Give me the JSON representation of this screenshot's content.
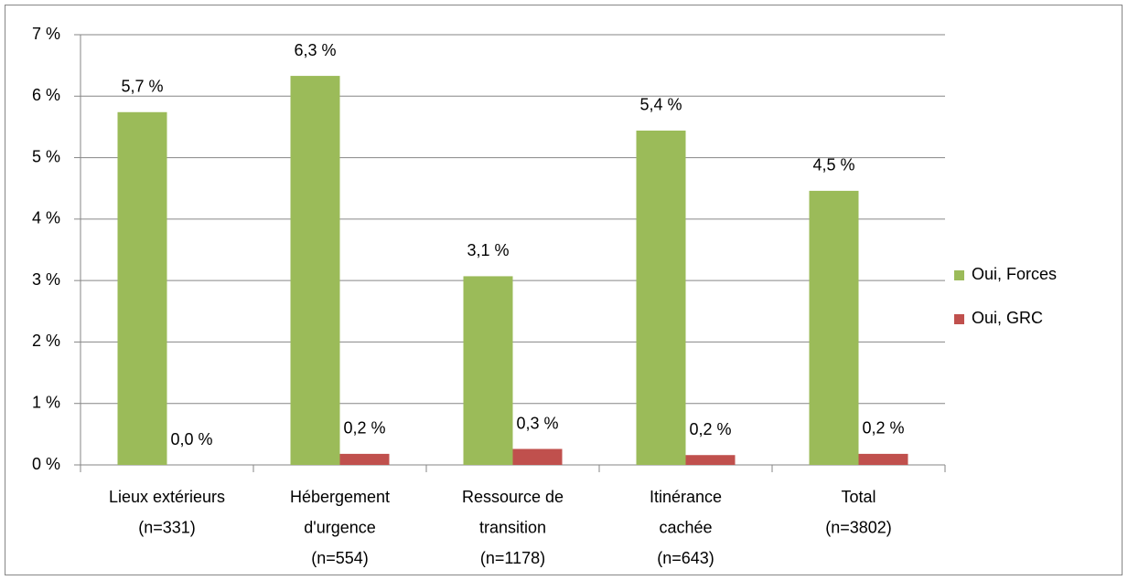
{
  "chart_data": {
    "type": "bar",
    "categories": [
      [
        "Lieux extérieurs",
        "(n=331)"
      ],
      [
        "Hébergement",
        "d'urgence",
        "(n=554)"
      ],
      [
        "Ressource de",
        "transition",
        "(n=1178)"
      ],
      [
        "Itinérance",
        "cachée",
        "(n=643)"
      ],
      [
        "Total",
        "(n=3802)"
      ]
    ],
    "series": [
      {
        "name": "Oui, Forces",
        "color": "#9bbb59",
        "values": [
          5.74,
          6.33,
          3.07,
          5.44,
          4.46
        ],
        "value_labels": [
          "5,7 %",
          "6,3 %",
          "3,1 %",
          "5,4 %",
          "4,5 %"
        ]
      },
      {
        "name": "Oui, GRC",
        "color": "#c0504d",
        "values": [
          0,
          0.18,
          0.26,
          0.16,
          0.18
        ],
        "value_labels": [
          "0,0 %",
          "0,2 %",
          "0,3 %",
          "0,2 %",
          "0,2 %"
        ]
      }
    ],
    "ylim": [
      0,
      7
    ],
    "yticks": [
      {
        "value": 0,
        "label": "0 %"
      },
      {
        "value": 1,
        "label": "1 %"
      },
      {
        "value": 2,
        "label": "2 %"
      },
      {
        "value": 3,
        "label": "3 %"
      },
      {
        "value": 4,
        "label": "4 %"
      },
      {
        "value": 5,
        "label": "5 %"
      },
      {
        "value": 6,
        "label": "6 %"
      },
      {
        "value": 7,
        "label": "7 %"
      }
    ],
    "grid": true,
    "legend": "right"
  }
}
